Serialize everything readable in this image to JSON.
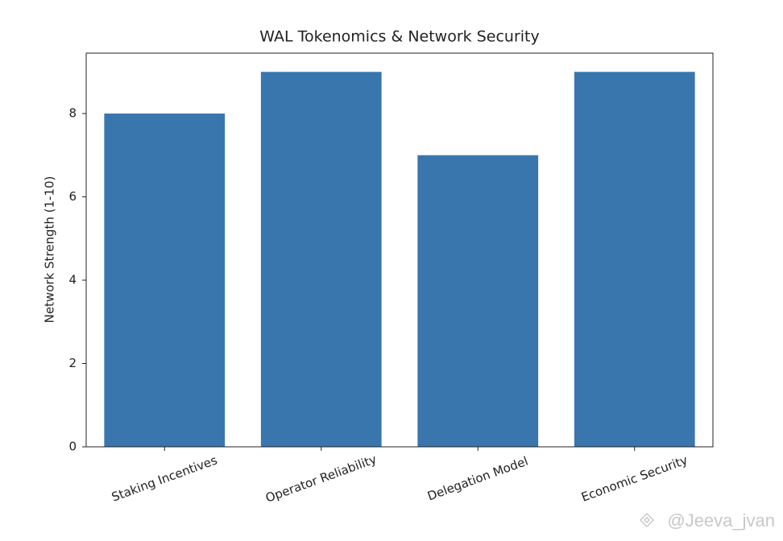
{
  "chart_data": {
    "type": "bar",
    "title": "WAL Tokenomics & Network Security",
    "ylabel": "Network Strength (1-10)",
    "categories": [
      "Staking Incentives",
      "Operator Reliability",
      "Delegation Model",
      "Economic Security"
    ],
    "values": [
      8,
      9,
      7,
      9
    ],
    "color": "#3a76ae",
    "ylim": [
      0,
      9.45
    ],
    "yticks": [
      0,
      2,
      4,
      6,
      8
    ],
    "grid": false,
    "watermark": "@Jeeva_jvan"
  }
}
